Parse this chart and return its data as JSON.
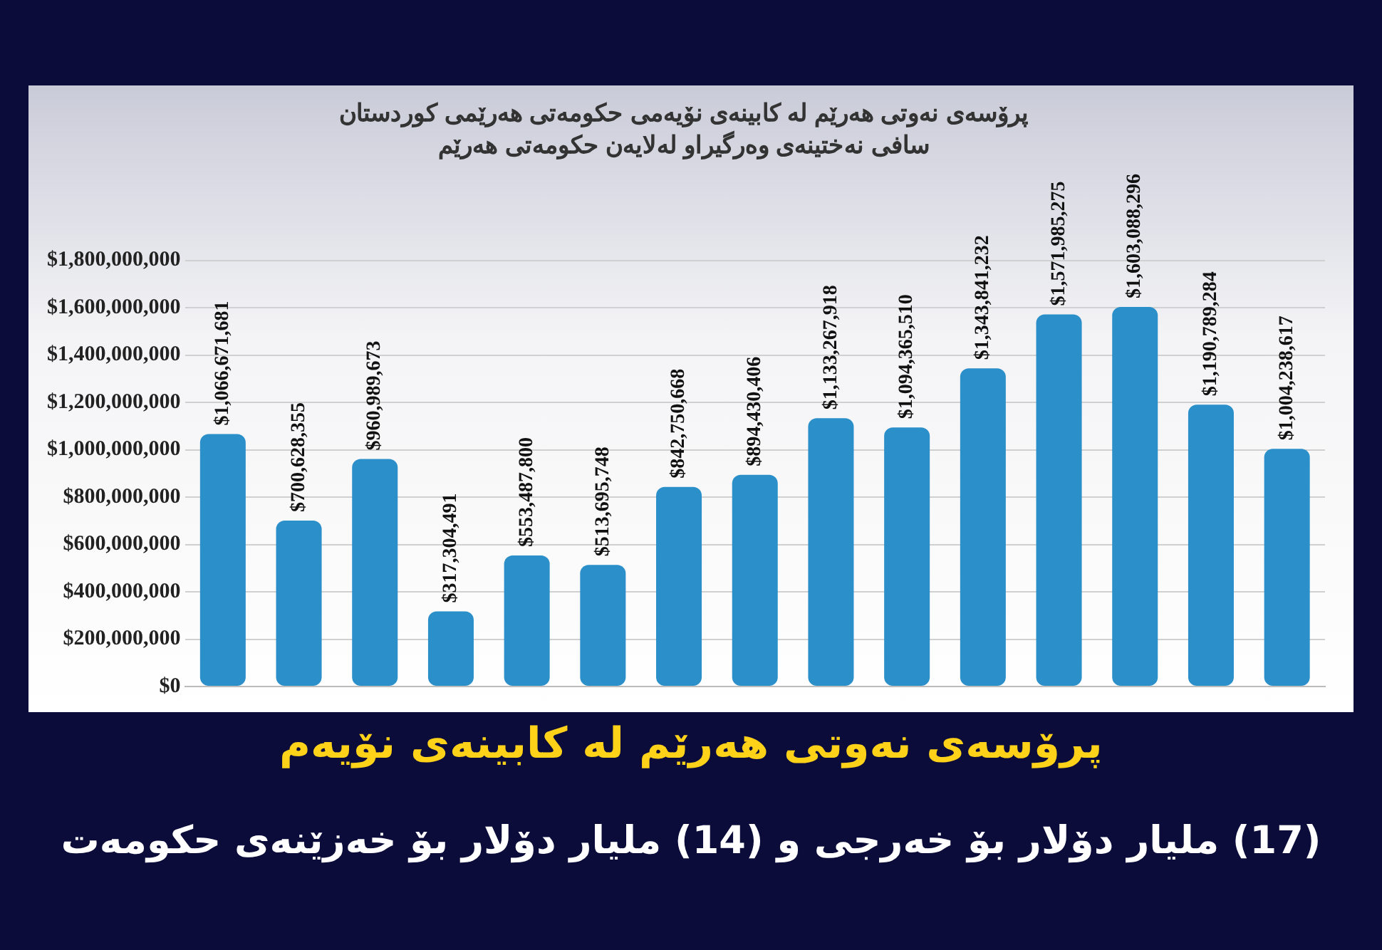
{
  "chart_data": {
    "type": "bar",
    "title": "پرۆسەی نەوتی هەرێم لە کابینەی نۆیەمی حکومەتی هەرێمی کوردستان",
    "subtitle": "سافی نەختینەی وەرگیراو لەلایەن حکومەتی هەرێم",
    "categories": [
      null,
      null,
      null,
      null,
      null,
      null,
      null,
      null,
      null,
      null,
      null,
      null,
      null,
      null,
      null
    ],
    "values": [
      1066671681,
      700628355,
      960989673,
      317304491,
      553487800,
      513695748,
      842750668,
      894430406,
      1133267918,
      1094365510,
      1343841232,
      1571985275,
      1603088296,
      1190789284,
      1004238617
    ],
    "value_labels": [
      "$1,066,671,681",
      "$700,628,355",
      "$960,989,673",
      "$317,304,491",
      "$553,487,800",
      "$513,695,748",
      "$842,750,668",
      "$894,430,406",
      "$1,133,267,918",
      "$1,094,365,510",
      "$1,343,841,232",
      "$1,571,985,275",
      "$1,603,088,296",
      "$1,190,789,284",
      "$1,004,238,617"
    ],
    "color": "#2b8fca",
    "ylim": [
      0,
      1800000000
    ],
    "yticks": [
      {
        "value": 0,
        "label": "$0"
      },
      {
        "value": 200000000,
        "label": "$200,000,000"
      },
      {
        "value": 400000000,
        "label": "$400,000,000"
      },
      {
        "value": 600000000,
        "label": "$600,000,000"
      },
      {
        "value": 800000000,
        "label": "$800,000,000"
      },
      {
        "value": 1000000000,
        "label": "$1,000,000,000"
      },
      {
        "value": 1200000000,
        "label": "$1,200,000,000"
      },
      {
        "value": 1400000000,
        "label": "$1,400,000,000"
      },
      {
        "value": 1600000000,
        "label": "$1,600,000,000"
      },
      {
        "value": 1800000000,
        "label": "$1,800,000,000"
      }
    ],
    "grid": "y",
    "tick_labels": "y",
    "annotations": [
      "پرۆسەی نەوتی هەرێم لە کابینەی نۆیەم",
      "(17) ملیار دۆلار بۆ خەرجی و (14) ملیار دۆلار بۆ خەزێنەی حکومەت"
    ]
  }
}
